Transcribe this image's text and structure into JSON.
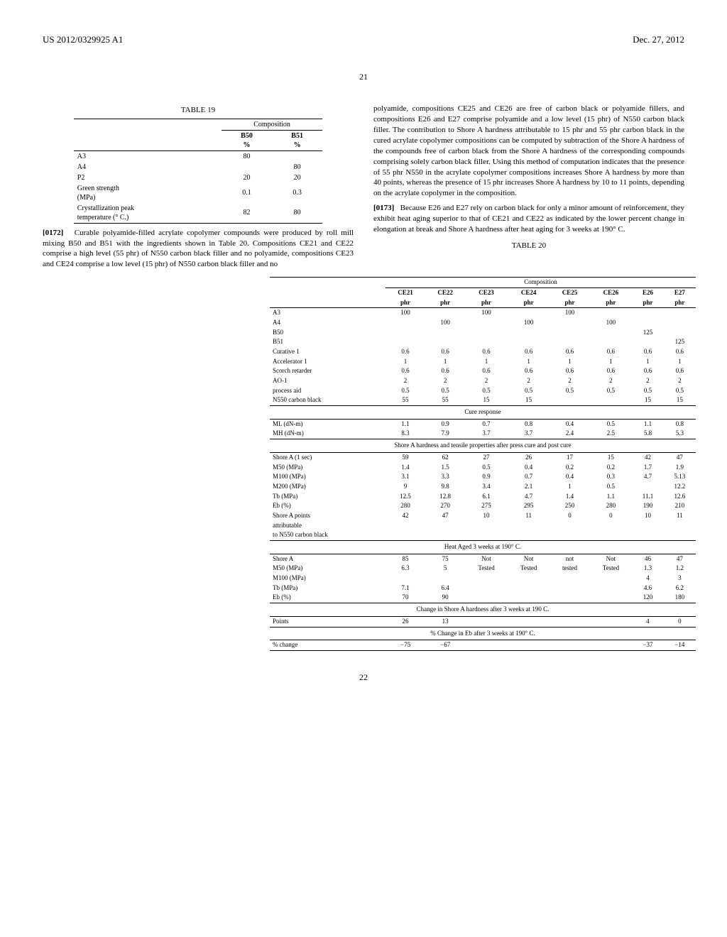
{
  "header": {
    "pub_number": "US 2012/0329925 A1",
    "pub_date": "Dec. 27, 2012",
    "page_center": "21",
    "figure_page": "22"
  },
  "table19": {
    "caption": "TABLE 19",
    "group_header": "Composition",
    "col_headers": [
      "",
      "B50\n%",
      "B51\n%"
    ],
    "rows": [
      [
        "A3",
        "80",
        ""
      ],
      [
        "A4",
        "",
        "80"
      ],
      [
        "P2",
        "20",
        "20"
      ],
      [
        "Green strength\n(MPa)",
        "0.1",
        "0.3"
      ],
      [
        "Crystallization peak\ntemperature (° C.)",
        "82",
        "80"
      ]
    ]
  },
  "para": {
    "p0172_num": "[0172]",
    "p0172": "Curable polyamide-filled acrylate copolymer compounds were produced by roll mill mixing B50 and B51 with the ingredients shown in Table 20. Compositions CE21 and CE22 comprise a high level (55 phr) of N550 carbon black filler and no polyamide, compositions CE23 and CE24 comprise a low level (15 phr) of N550 carbon black filler and no",
    "p0172b": "polyamide, compositions CE25 and CE26 are free of carbon black or polyamide fillers, and compositions E26 and E27 comprise polyamide and a low level (15 phr) of N550 carbon black filler. The contribution to Shore A hardness attributable to 15 phr and 55 phr carbon black in the cured acrylate copolymer compositions can be computed by subtraction of the Shore A hardness of the compounds free of carbon black from the Shore A hardness of the corresponding compounds comprising solely carbon black filler. Using this method of computation indicates that the presence of 55 phr N550 in the acrylate copolymer compositions increases Shore A hardness by more than 40 points, whereas the presence of 15 phr increases Shore A hardness by 10 to 11 points, depending on the acrylate copolymer in the composition.",
    "p0173_num": "[0173]",
    "p0173": "Because E26 and E27 rely on carbon black for only a minor amount of reinforcement, they exhibit heat aging superior to that of CE21 and CE22 as indicated by the lower percent change in elongation at break and Shore A hardness after heat aging for 3 weeks at 190° C."
  },
  "table20": {
    "caption": "TABLE 20",
    "group_header": "Composition",
    "col1": [
      "",
      "CE21",
      "CE22",
      "CE23",
      "CE24",
      "CE25",
      "CE26",
      "E26",
      "E27"
    ],
    "col2": [
      "",
      "phr",
      "phr",
      "phr",
      "phr",
      "phr",
      "phr",
      "phr",
      "phr"
    ],
    "body_rows": [
      [
        "A3",
        "100",
        "",
        "100",
        "",
        "100",
        "",
        "",
        ""
      ],
      [
        "A4",
        "",
        "100",
        "",
        "100",
        "",
        "100",
        "",
        ""
      ],
      [
        "B50",
        "",
        "",
        "",
        "",
        "",
        "",
        "125",
        ""
      ],
      [
        "B51",
        "",
        "",
        "",
        "",
        "",
        "",
        "",
        "125"
      ],
      [
        "Curative 1",
        "0.6",
        "0.6",
        "0.6",
        "0.6",
        "0.6",
        "0.6",
        "0.6",
        "0.6"
      ],
      [
        "Accelerator 1",
        "1",
        "1",
        "1",
        "1",
        "1",
        "1",
        "1",
        "1"
      ],
      [
        "Scorch retarder",
        "0.6",
        "0.6",
        "0.6",
        "0.6",
        "0.6",
        "0.6",
        "0.6",
        "0.6"
      ],
      [
        "AO-1",
        "2",
        "2",
        "2",
        "2",
        "2",
        "2",
        "2",
        "2"
      ],
      [
        "process aid",
        "0.5",
        "0.5",
        "0.5",
        "0.5",
        "0.5",
        "0.5",
        "0.5",
        "0.5"
      ],
      [
        "N550 carbon black",
        "55",
        "55",
        "15",
        "15",
        "",
        "",
        "15",
        "15"
      ]
    ],
    "section1": "Cure response",
    "rows_s1": [
      [
        "ML (dN-m)",
        "1.1",
        "0.9",
        "0.7",
        "0.8",
        "0.4",
        "0.5",
        "1.1",
        "0.8"
      ],
      [
        "MH (dN-m)",
        "8.3",
        "7.9",
        "3.7",
        "3.7",
        "2.4",
        "2.5",
        "5.8",
        "5.3"
      ]
    ],
    "section2": "Shore A hardness and tensile properties after press cure and post cure",
    "rows_s2": [
      [
        "Shore A (1 sec)",
        "59",
        "62",
        "27",
        "26",
        "17",
        "15",
        "42",
        "47"
      ],
      [
        "M50 (MPa)",
        "1.4",
        "1.5",
        "0.5",
        "0.4",
        "0.2",
        "0.2",
        "1.7",
        "1.9"
      ],
      [
        "M100 (MPa)",
        "3.1",
        "3.3",
        "0.9",
        "0.7",
        "0.4",
        "0.3",
        "4.7",
        "5.13"
      ],
      [
        "M200 (MPa)",
        "9",
        "9.8",
        "3.4",
        "2.1",
        "1",
        "0.5",
        "",
        "12.2"
      ],
      [
        "Tb (MPa)",
        "12.5",
        "12.8",
        "6.1",
        "4.7",
        "1.4",
        "1.1",
        "11.1",
        "12.6"
      ],
      [
        "Eb (%)",
        "280",
        "270",
        "275",
        "295",
        "250",
        "280",
        "190",
        "210"
      ],
      [
        "Shore A points",
        "42",
        "47",
        "10",
        "11",
        "0",
        "0",
        "10",
        "11"
      ],
      [
        "attributable",
        "",
        "",
        "",
        "",
        "",
        "",
        "",
        ""
      ],
      [
        "to N550 carbon black",
        "",
        "",
        "",
        "",
        "",
        "",
        "",
        ""
      ]
    ],
    "section3": "Heat Aged 3 weeks at 190° C.",
    "rows_s3": [
      [
        "Shore A",
        "85",
        "75",
        "Not",
        "Not",
        "not",
        "Not",
        "46",
        "47"
      ],
      [
        "M50 (MPa)",
        "6.3",
        "5",
        "Tested",
        "Tested",
        "tested",
        "Tested",
        "1.3",
        "1.2"
      ],
      [
        "M100 (MPa)",
        "",
        "",
        "",
        "",
        "",
        "",
        "4",
        "3"
      ],
      [
        "Tb (MPa)",
        "7.1",
        "6.4",
        "",
        "",
        "",
        "",
        "4.6",
        "6.2"
      ],
      [
        "Eb (%)",
        "70",
        "90",
        "",
        "",
        "",
        "",
        "120",
        "180"
      ]
    ],
    "section4": "Change in Shore A hardness after 3 weeks at 190 C.",
    "rows_s4": [
      [
        "Points",
        "26",
        "13",
        "",
        "",
        "",
        "",
        "4",
        "0"
      ]
    ],
    "section5": "% Change in Eb after 3 weeks at 190° C.",
    "rows_s5": [
      [
        "% change",
        "−75",
        "−67",
        "",
        "",
        "",
        "",
        "−37",
        "−14"
      ]
    ]
  }
}
